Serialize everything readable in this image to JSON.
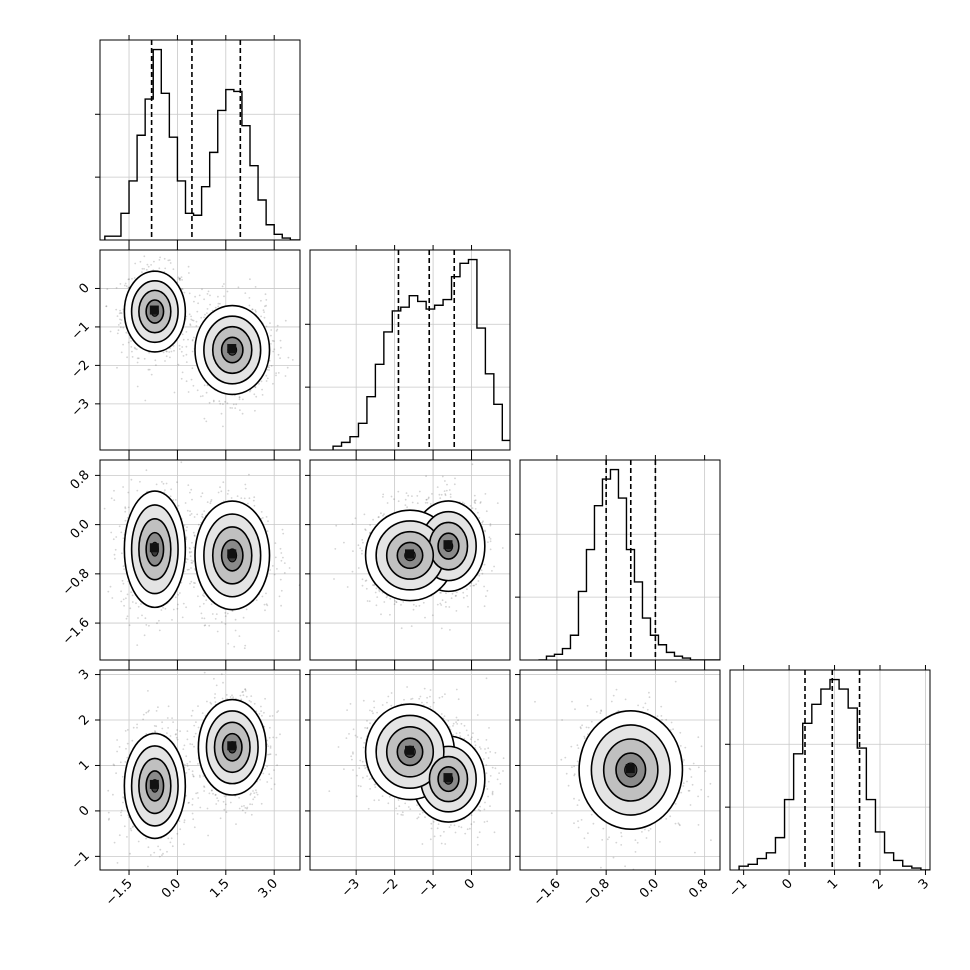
{
  "chart_data": {
    "type": "corner",
    "grid": true,
    "parameters": [
      {
        "index": 0,
        "range": [
          -2.4,
          3.8
        ],
        "ticks": [
          -1.5,
          0.0,
          1.5,
          3.0
        ],
        "tick_labels": [
          "−1.5",
          "0.0",
          "1.5",
          "3.0"
        ],
        "quantile_lines": [
          -0.8,
          0.45,
          1.95
        ],
        "histogram": {
          "bin_width": 0.25,
          "start": -2.25,
          "counts": [
            0.02,
            0.02,
            0.14,
            0.31,
            0.55,
            0.74,
            1.0,
            0.77,
            0.54,
            0.31,
            0.14,
            0.13,
            0.28,
            0.46,
            0.68,
            0.79,
            0.78,
            0.6,
            0.39,
            0.21,
            0.08,
            0.03,
            0.01,
            0.0,
            0.0
          ]
        },
        "modes": [
          -0.7,
          1.7
        ]
      },
      {
        "index": 1,
        "range": [
          -4.2,
          1.0
        ],
        "ticks": [
          -3,
          -2,
          -1,
          0
        ],
        "tick_labels": [
          "−3",
          "−2",
          "−1",
          "0"
        ],
        "quantile_lines": [
          -1.9,
          -1.1,
          -0.45
        ],
        "histogram": {
          "bin_width": 0.22,
          "start": -3.6,
          "counts": [
            0.02,
            0.04,
            0.07,
            0.14,
            0.28,
            0.45,
            0.62,
            0.73,
            0.75,
            0.81,
            0.78,
            0.74,
            0.76,
            0.79,
            0.91,
            0.98,
            1.0,
            0.64,
            0.4,
            0.24,
            0.05,
            0.02,
            0.0
          ]
        },
        "modes": [
          -0.6,
          -1.6
        ]
      },
      {
        "index": 2,
        "range": [
          -2.2,
          1.05
        ],
        "ticks": [
          -1.6,
          -0.8,
          0.0,
          0.8
        ],
        "tick_labels": [
          "−1.6",
          "−0.8",
          "0.0",
          "0.8"
        ],
        "quantile_lines": [
          -0.8,
          -0.4,
          0.0
        ],
        "histogram": {
          "bin_width": 0.13,
          "start": -1.9,
          "counts": [
            0.0,
            0.02,
            0.03,
            0.06,
            0.13,
            0.36,
            0.58,
            0.81,
            0.95,
            1.0,
            0.85,
            0.58,
            0.41,
            0.22,
            0.13,
            0.08,
            0.04,
            0.02,
            0.01,
            0.0,
            0.0,
            0.0,
            0.0,
            0.0,
            0.0
          ]
        },
        "modes": [
          -0.4
        ]
      },
      {
        "index": 3,
        "range": [
          -1.3,
          3.1
        ],
        "ticks": [
          -1,
          0,
          1,
          2,
          3
        ],
        "tick_labels": [
          "−1",
          "0",
          "1",
          "2",
          "3"
        ],
        "quantile_lines": [
          0.35,
          0.95,
          1.55
        ],
        "histogram": {
          "bin_width": 0.2,
          "start": -1.1,
          "counts": [
            0.02,
            0.03,
            0.06,
            0.09,
            0.17,
            0.37,
            0.61,
            0.77,
            0.87,
            0.95,
            1.0,
            0.95,
            0.85,
            0.64,
            0.37,
            0.2,
            0.09,
            0.05,
            0.02,
            0.01,
            0.0,
            0.0
          ]
        },
        "modes": [
          0.9
        ]
      }
    ],
    "pairs": [
      {
        "x": 0,
        "y": 1,
        "clusters": [
          {
            "cx": -0.7,
            "cy": -0.6,
            "sx": 0.45,
            "sy": 0.5,
            "w": 1.0
          },
          {
            "cx": 1.7,
            "cy": -1.6,
            "sx": 0.55,
            "sy": 0.55,
            "w": 1.0
          }
        ]
      },
      {
        "x": 0,
        "y": 2,
        "clusters": [
          {
            "cx": -0.7,
            "cy": -0.4,
            "sx": 0.45,
            "sy": 0.45,
            "w": 1.0
          },
          {
            "cx": 1.7,
            "cy": -0.5,
            "sx": 0.55,
            "sy": 0.42,
            "w": 1.0
          }
        ]
      },
      {
        "x": 0,
        "y": 3,
        "clusters": [
          {
            "cx": -0.7,
            "cy": 0.55,
            "sx": 0.45,
            "sy": 0.55,
            "w": 1.0
          },
          {
            "cx": 1.7,
            "cy": 1.4,
            "sx": 0.5,
            "sy": 0.5,
            "w": 1.0
          }
        ]
      },
      {
        "x": 1,
        "y": 2,
        "clusters": [
          {
            "cx": -0.6,
            "cy": -0.35,
            "sx": 0.45,
            "sy": 0.35,
            "w": 1.0
          },
          {
            "cx": -1.6,
            "cy": -0.5,
            "sx": 0.55,
            "sy": 0.35,
            "w": 1.0
          }
        ]
      },
      {
        "x": 1,
        "y": 3,
        "clusters": [
          {
            "cx": -0.6,
            "cy": 0.7,
            "sx": 0.45,
            "sy": 0.45,
            "w": 1.0
          },
          {
            "cx": -1.6,
            "cy": 1.3,
            "sx": 0.55,
            "sy": 0.5,
            "w": 1.0
          }
        ]
      },
      {
        "x": 2,
        "y": 3,
        "clusters": [
          {
            "cx": -0.4,
            "cy": 0.9,
            "sx": 0.4,
            "sy": 0.62,
            "w": 1.0
          }
        ]
      }
    ]
  }
}
